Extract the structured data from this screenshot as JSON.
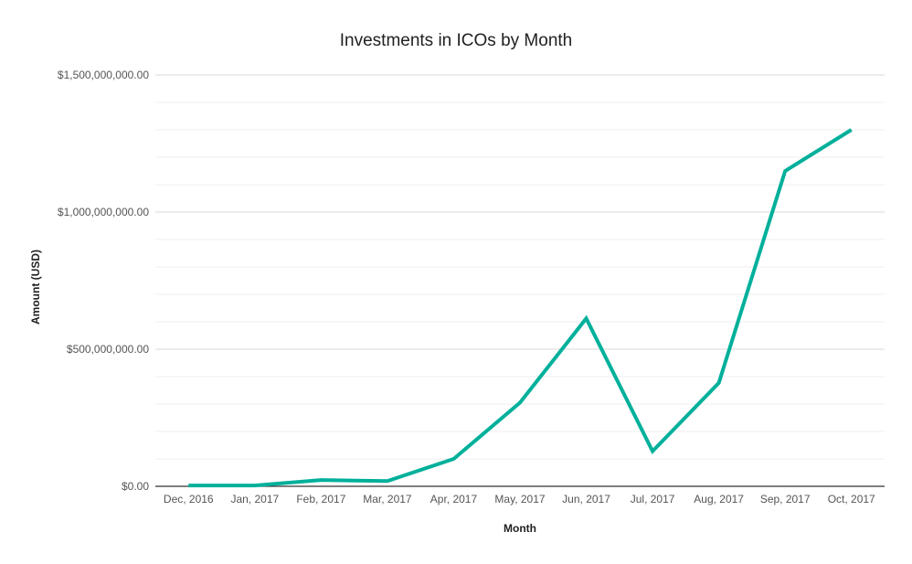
{
  "chart_data": {
    "type": "line",
    "title": "Investments in ICOs by Month",
    "xlabel": "Month",
    "ylabel": "Amount (USD)",
    "categories": [
      "Dec, 2016",
      "Jan, 2017",
      "Feb, 2017",
      "Mar, 2017",
      "Apr, 2017",
      "May, 2017",
      "Jun, 2017",
      "Jul, 2017",
      "Aug, 2017",
      "Sep, 2017",
      "Oct, 2017"
    ],
    "series": [
      {
        "values": [
          3000000,
          3000000,
          23000000,
          19000000,
          100000000,
          305000000,
          612000000,
          128000000,
          377000000,
          1150000000,
          1300000000
        ],
        "color": "#00b09b"
      }
    ],
    "ylim": [
      0,
      1500000000
    ],
    "y_ticks": [
      0,
      500000000,
      1000000000,
      1500000000
    ],
    "y_tick_labels": [
      "$0.00",
      "$500,000,000.00",
      "$1,000,000,000.00",
      "$1,500,000,000.00"
    ],
    "minor_gridlines_per_major": 4,
    "grid": true,
    "legend": "none",
    "colors": {
      "line": "#00b09b",
      "major_grid": "#d9d9d9",
      "minor_grid": "#efefef",
      "baseline": "#333333"
    }
  }
}
